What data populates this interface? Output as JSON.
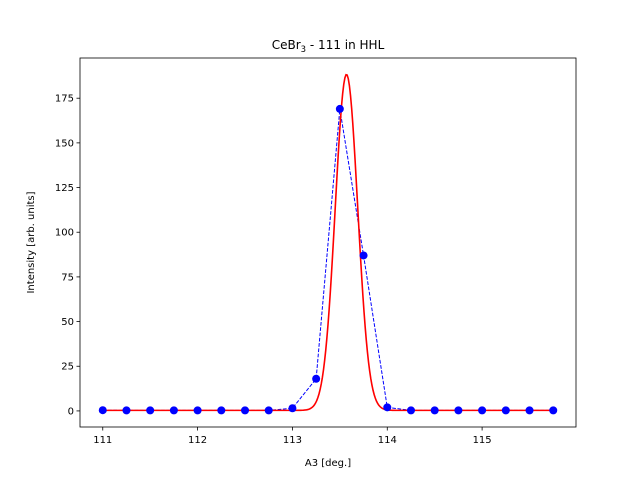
{
  "chart_data": {
    "type": "scatter",
    "title": "CeBr",
    "title_subscript": "3",
    "title_suffix": " - 111 in HHL",
    "xlabel": "A3 [deg.]",
    "ylabel": "Intensity [arb. units]",
    "xlim": [
      110.76,
      115.99
    ],
    "ylim": [
      -9.0,
      197.5
    ],
    "xticks": [
      111,
      112,
      113,
      114,
      115
    ],
    "xtick_labels": [
      "111",
      "112",
      "113",
      "114",
      "115"
    ],
    "yticks": [
      0,
      25,
      50,
      75,
      100,
      125,
      150,
      175
    ],
    "ytick_labels": [
      "0",
      "25",
      "50",
      "75",
      "100",
      "125",
      "150",
      "175"
    ],
    "grid": false,
    "legend": false,
    "series": [
      {
        "kind": "scatter-dashed",
        "color": "#0000ff",
        "x": [
          111.0,
          111.25,
          111.5,
          111.75,
          112.0,
          112.25,
          112.5,
          112.75,
          113.0,
          113.25,
          113.5,
          113.75,
          114.0,
          114.25,
          114.5,
          114.75,
          115.0,
          115.25,
          115.5,
          115.75
        ],
        "y": [
          0.4,
          0.3,
          0.3,
          0.3,
          0.3,
          0.3,
          0.3,
          0.3,
          1.5,
          18.0,
          169.0,
          87.0,
          2.0,
          0.3,
          0.3,
          0.3,
          0.3,
          0.3,
          0.3,
          0.3
        ]
      },
      {
        "kind": "fit-line",
        "color": "#ff0000",
        "fit": {
          "model": "gaussian",
          "amplitude": 188.0,
          "center": 113.57,
          "sigma": 0.118,
          "background": 0.3
        }
      }
    ]
  }
}
